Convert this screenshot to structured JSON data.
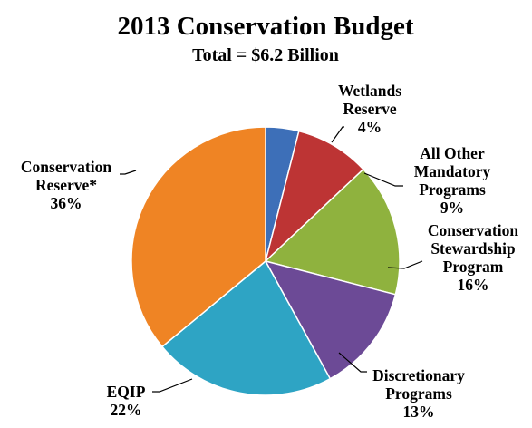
{
  "chart_data": {
    "type": "pie",
    "title": "2013 Conservation Budget",
    "subtitle": "Total = $6.2 Billion",
    "slices": [
      {
        "lines": [
          "Wetlands",
          "Reserve"
        ],
        "value_label": "4%",
        "value": 4,
        "color": "#3d6fb8"
      },
      {
        "lines": [
          "All Other",
          "Mandatory",
          "Programs"
        ],
        "value_label": "9%",
        "value": 9,
        "color": "#bd3434"
      },
      {
        "lines": [
          "Conservation",
          "Stewardship",
          "Program"
        ],
        "value_label": "16%",
        "value": 16,
        "color": "#8fb23e"
      },
      {
        "lines": [
          "Discretionary",
          "Programs"
        ],
        "value_label": "13%",
        "value": 13,
        "color": "#6c4a96"
      },
      {
        "lines": [
          "EQIP"
        ],
        "value_label": "22%",
        "value": 22,
        "color": "#2ea4c4"
      },
      {
        "lines": [
          "Conservation",
          "Reserve*"
        ],
        "value_label": "36%",
        "value": 36,
        "color": "#ef8424"
      }
    ]
  }
}
